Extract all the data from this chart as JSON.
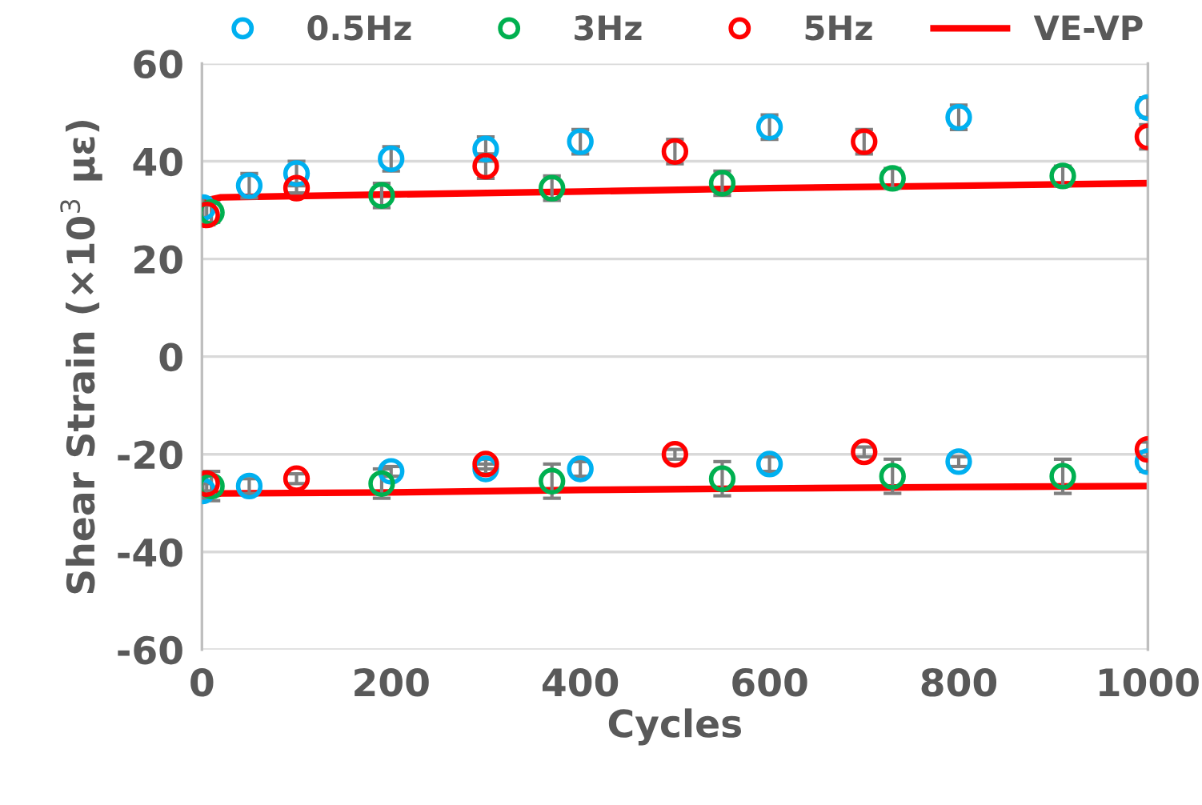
{
  "chart_data": {
    "type": "scatter",
    "xlabel": "Cycles",
    "ylabel": "Shear Strain (×10$^{3}$ με)",
    "xlim": [
      0,
      1000
    ],
    "ylim": [
      -60,
      60
    ],
    "xticks": [
      0,
      200,
      400,
      600,
      800,
      1000
    ],
    "yticks": [
      -60,
      -40,
      -20,
      0,
      20,
      40,
      60
    ],
    "grid": "y",
    "legend": "top",
    "marker": "circle",
    "series": [
      {
        "name": "0.5Hz",
        "color": "#00b0f0",
        "x": [
          1,
          50,
          100,
          200,
          300,
          400,
          600,
          800,
          1000,
          1,
          50,
          200,
          300,
          400,
          600,
          800,
          1000
        ],
        "values": [
          30.5,
          35,
          37.5,
          40.5,
          42.5,
          44,
          47,
          49,
          51,
          -27.5,
          -26.5,
          -23.5,
          -23,
          -23,
          -22,
          -21.5,
          -21.5
        ],
        "errors": [
          2,
          2.5,
          2.5,
          2.5,
          2.5,
          2.5,
          2.5,
          2.5,
          2,
          1.5,
          1.5,
          1,
          1,
          1.5,
          1.5,
          1,
          2
        ]
      },
      {
        "name": "3Hz",
        "color": "#00b050",
        "x": [
          10,
          190,
          370,
          550,
          730,
          910,
          10,
          190,
          370,
          550,
          730,
          910
        ],
        "values": [
          29.5,
          33,
          34.5,
          35.5,
          36.5,
          37,
          -26.5,
          -26,
          -25.5,
          -25,
          -24.5,
          -24.5
        ],
        "errors": [
          2,
          2.5,
          2.5,
          2.5,
          2,
          2,
          3,
          3,
          3.5,
          3.5,
          3.5,
          3.5
        ]
      },
      {
        "name": "5Hz",
        "color": "#ff0000",
        "x": [
          5,
          100,
          300,
          500,
          700,
          1000,
          5,
          100,
          300,
          500,
          700,
          1000
        ],
        "values": [
          29,
          34.5,
          39,
          42,
          44,
          45,
          -26,
          -25,
          -22,
          -20,
          -19.5,
          -19
        ],
        "errors": [
          2,
          1,
          2.5,
          2.5,
          2.5,
          2.5,
          1.5,
          1,
          1,
          1,
          1,
          1.5
        ]
      },
      {
        "name": "VE-VP",
        "type": "line",
        "color": "#ff0000",
        "marker": "none",
        "x": [
          5,
          20,
          200,
          400,
          600,
          800,
          1000,
          null,
          5,
          20,
          200,
          400,
          600,
          800,
          1000
        ],
        "values": [
          32,
          32.6,
          33.2,
          33.8,
          34.5,
          35,
          35.5,
          null,
          -28.5,
          -28,
          -27.8,
          -27.3,
          -27,
          -26.7,
          -26.5
        ]
      }
    ]
  }
}
